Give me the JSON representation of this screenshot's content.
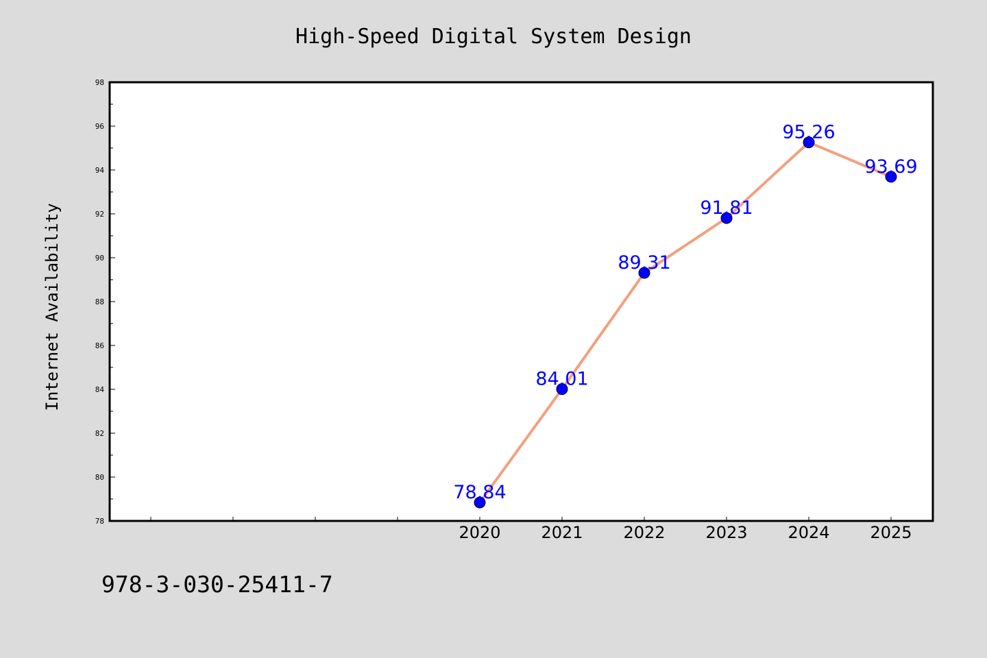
{
  "chart_data": {
    "type": "line",
    "title": "High-Speed Digital System Design",
    "ylabel": "Internet Availability",
    "xlabel": "",
    "x": [
      "2020",
      "2021",
      "2022",
      "2023",
      "2024",
      "2025"
    ],
    "x_slots": [
      "",
      "",
      "",
      "",
      "2020",
      "2021",
      "2022",
      "2023",
      "2024",
      "2025"
    ],
    "series": [
      {
        "values": [
          78.84,
          84.01,
          89.31,
          91.81,
          95.26,
          93.69
        ]
      }
    ],
    "data_labels": [
      "78.84",
      "84.01",
      "89.31",
      "91.81",
      "95.26",
      "93.69"
    ],
    "ylim": [
      78,
      98
    ],
    "yticks": [
      78,
      80,
      82,
      84,
      86,
      88,
      90,
      92,
      94,
      96,
      98
    ],
    "grid": false,
    "colors": {
      "line": "#f4a07e",
      "marker": "#0000ff",
      "label": "#0000ff",
      "plot_background": "#ffffff",
      "page_background": "#dcdcdc"
    }
  },
  "footer": {
    "isbn": "978-3-030-25411-7"
  }
}
